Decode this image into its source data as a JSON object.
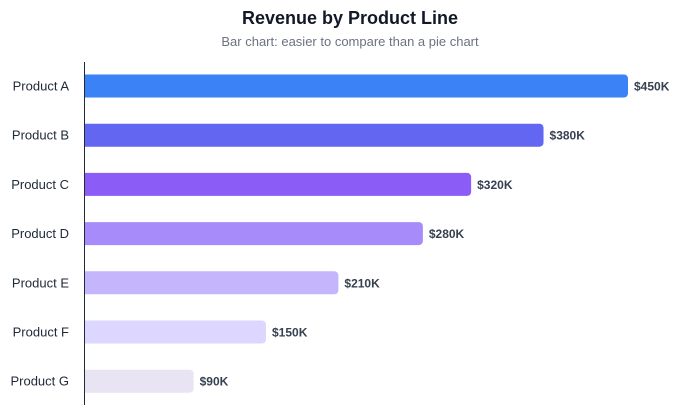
{
  "chart_data": {
    "type": "bar",
    "orientation": "horizontal",
    "title": "Revenue by Product Line",
    "subtitle": "Bar chart: easier to compare than a pie chart",
    "categories": [
      "Product A",
      "Product B",
      "Product C",
      "Product D",
      "Product E",
      "Product F",
      "Product G"
    ],
    "values": [
      450,
      380,
      320,
      280,
      210,
      150,
      90
    ],
    "data_labels": [
      "$450K",
      "$380K",
      "$320K",
      "$280K",
      "$210K",
      "$150K",
      "$90K"
    ],
    "colors": [
      "#3b82f6",
      "#6366f1",
      "#8b5cf6",
      "#a78bfa",
      "#c4b5fd",
      "#ddd6fe",
      "#e8e4f4"
    ],
    "xlim": [
      0,
      450
    ],
    "grid": false
  }
}
